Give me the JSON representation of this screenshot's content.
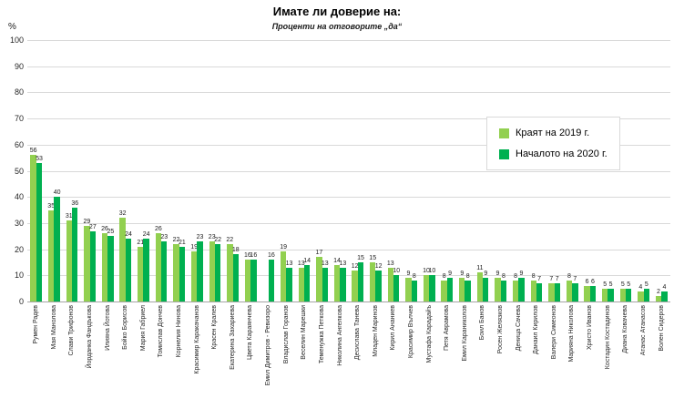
{
  "chart_data": {
    "type": "bar",
    "title": "Имате ли доверие на:",
    "subtitle": "Проценти на отговорите „да“",
    "ylabel": "%",
    "ylim": [
      0,
      100
    ],
    "ytick_step": 10,
    "grid": true,
    "legend_position": "right-top",
    "colors": {
      "series1": "#92D050",
      "series2": "#00B050"
    },
    "categories": [
      "Румен Радев",
      "Мая Манолова",
      "Слави Трифонов",
      "Йорданка Фандъкова",
      "Илияна Йотова",
      "Бойко Борисов",
      "Мария Габриел",
      "Томислав Дончев",
      "Корнелия Нинова",
      "Красимир Каракачанов",
      "Красен Кралев",
      "Екатерина Захариева",
      "Цвета Караянчева",
      "Емил Димитров - Ревизоро",
      "Владислав Горанов",
      "Веселин Марешки",
      "Теменужка Петкова",
      "Николина Ангелкова",
      "Десислава Танева",
      "Младен Маринов",
      "Кирил Ананиев",
      "Красимир Вълчев",
      "Мустафа Карадайъ",
      "Петя Аврамова",
      "Емил Караниколов",
      "Боил Банов",
      "Росен Желязков",
      "Деница Сачева",
      "Данаил Кирилов",
      "Валери Симеонов",
      "Марияна Николова",
      "Христо Иванов",
      "Костадин Костадинов",
      "Диана Ковачева",
      "Атанас Атанасов",
      "Волен Сидеров"
    ],
    "series": [
      {
        "name": "Краят на 2019 г.",
        "values": [
          56,
          35,
          31,
          29,
          26,
          32,
          21,
          26,
          22,
          19,
          23,
          22,
          16,
          null,
          19,
          13,
          17,
          14,
          12,
          15,
          13,
          9,
          10,
          8,
          9,
          11,
          9,
          8,
          8,
          7,
          8,
          6,
          5,
          5,
          4,
          2
        ]
      },
      {
        "name": "Началото на 2020 г.",
        "values": [
          53,
          40,
          36,
          27,
          25,
          24,
          24,
          23,
          21,
          23,
          22,
          18,
          16,
          16,
          13,
          14,
          13,
          13,
          15,
          12,
          10,
          8,
          10,
          9,
          8,
          9,
          8,
          9,
          7,
          7,
          7,
          6,
          5,
          5,
          5,
          4
        ]
      }
    ]
  }
}
